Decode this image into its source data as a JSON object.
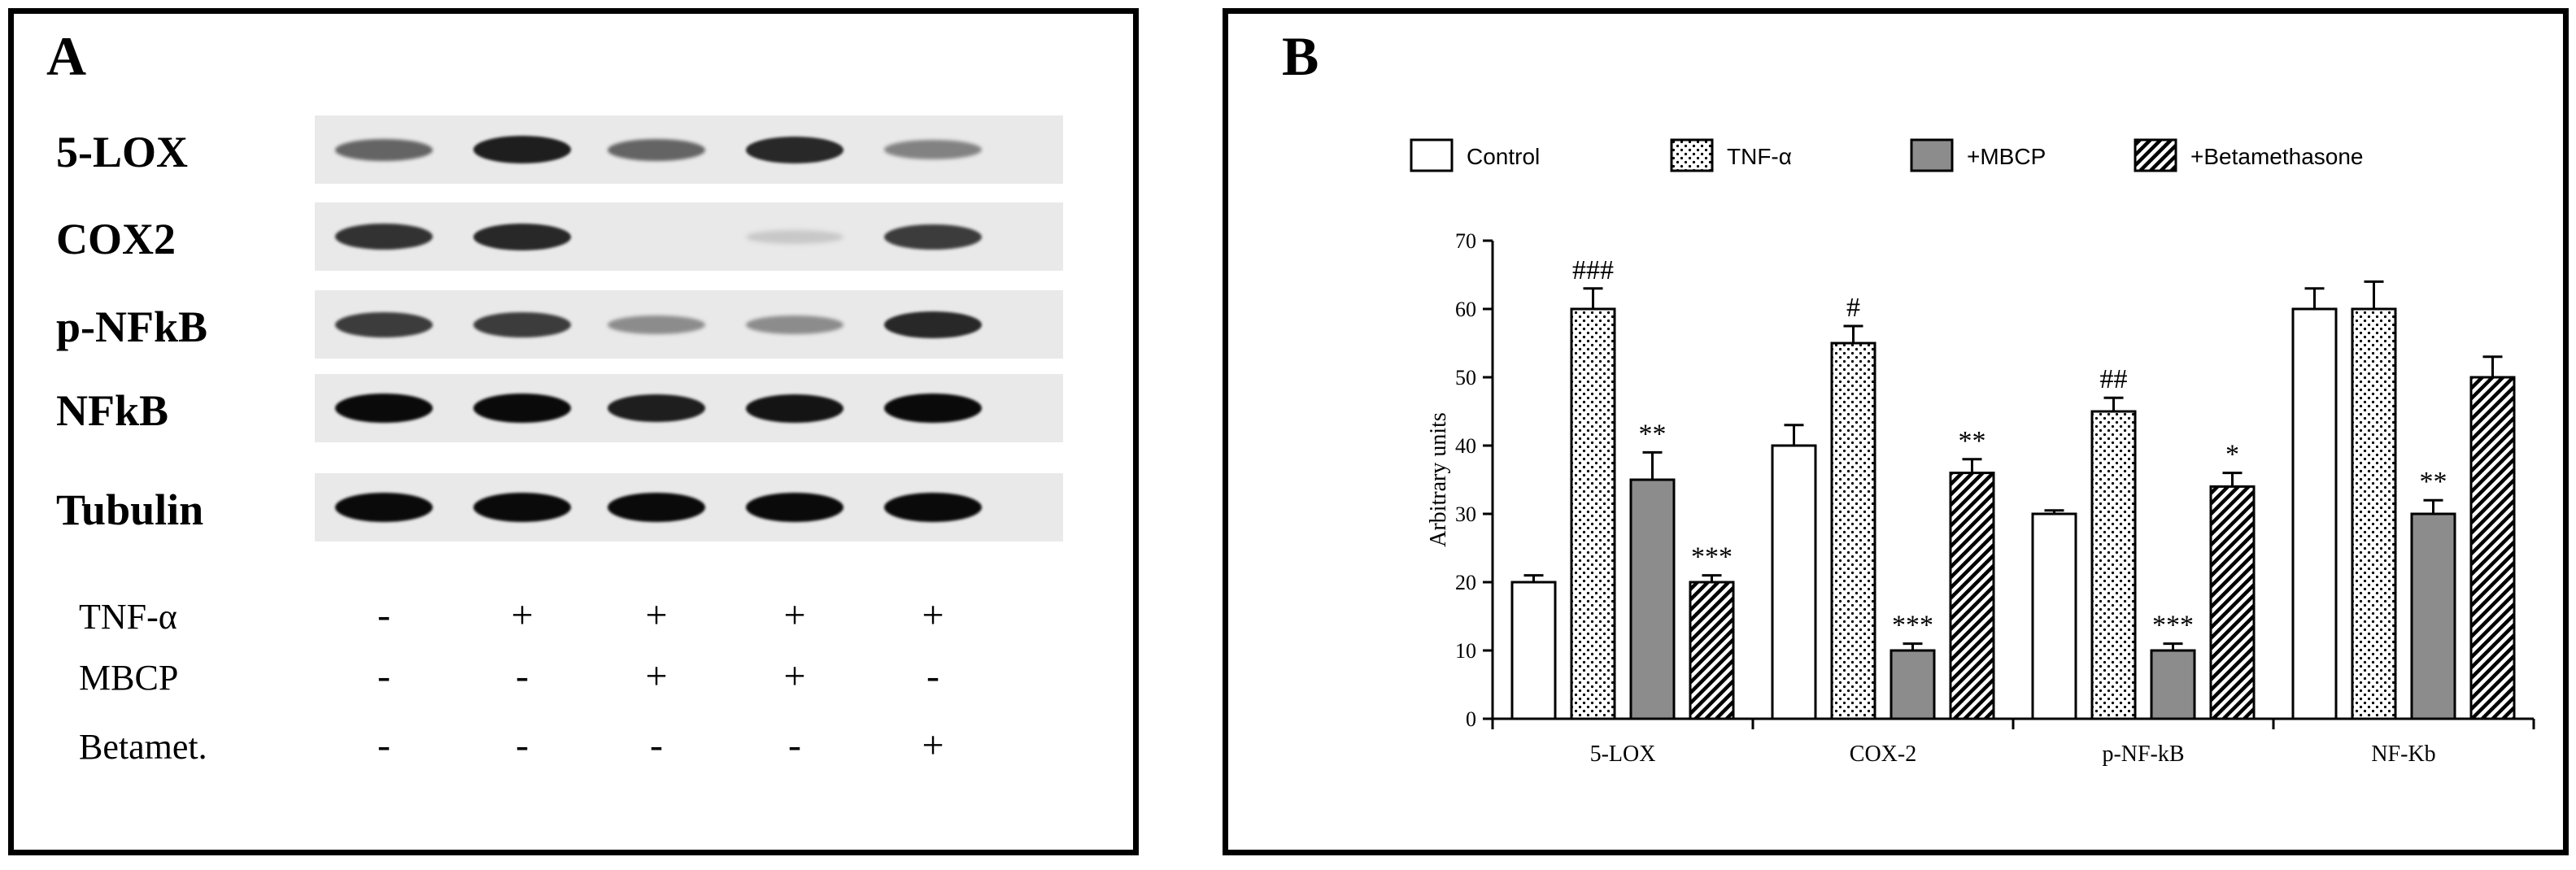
{
  "panel_a": {
    "label": "A",
    "blots": [
      {
        "name": "5-LOX",
        "intensity": [
          0.55,
          0.9,
          0.55,
          0.85,
          0.4
        ]
      },
      {
        "name": "COX2",
        "intensity": [
          0.8,
          0.85,
          0.0,
          0.05,
          0.75
        ]
      },
      {
        "name": "p-NFkB",
        "intensity": [
          0.75,
          0.75,
          0.35,
          0.35,
          0.85
        ]
      },
      {
        "name": "NFkB",
        "intensity": [
          1.0,
          1.0,
          0.9,
          0.95,
          1.0
        ]
      },
      {
        "name": "Tubulin",
        "intensity": [
          1.0,
          1.0,
          1.0,
          1.0,
          1.0
        ]
      }
    ],
    "conditions": [
      {
        "label": "TNF-α",
        "values": [
          "-",
          "+",
          "+",
          "+",
          "+"
        ]
      },
      {
        "label": "MBCP",
        "values": [
          "-",
          "-",
          "+",
          "+",
          "-"
        ]
      },
      {
        "label": "Betamet.",
        "values": [
          "-",
          "-",
          "-",
          "-",
          "+"
        ]
      }
    ]
  },
  "panel_b": {
    "label": "B",
    "chart_data": {
      "type": "bar",
      "categories": [
        "5-LOX",
        "COX-2",
        "p-NF-kB",
        "NF-Kb"
      ],
      "ylabel": "Arbitrary units",
      "xlabel": "",
      "ylim": [
        0,
        70
      ],
      "yticks": [
        0,
        10,
        20,
        30,
        40,
        50,
        60,
        70
      ],
      "legend_position": "top",
      "series": [
        {
          "name": "Control",
          "pattern": "empty",
          "values": [
            20,
            40,
            30,
            60
          ],
          "errors": [
            1,
            3,
            0.5,
            3
          ],
          "annotations": [
            "",
            "",
            "",
            ""
          ]
        },
        {
          "name": "TNF-α",
          "pattern": "dotted",
          "values": [
            60,
            55,
            45,
            60
          ],
          "errors": [
            3,
            2.5,
            2,
            4
          ],
          "annotations": [
            "###",
            "#",
            "##",
            ""
          ]
        },
        {
          "name": "+MBCP",
          "pattern": "gray",
          "values": [
            35,
            10,
            10,
            30
          ],
          "errors": [
            4,
            1,
            1,
            2
          ],
          "annotations": [
            "**",
            "***",
            "***",
            "**"
          ]
        },
        {
          "name": "+Betamethasone",
          "pattern": "hatched",
          "values": [
            20,
            36,
            34,
            50
          ],
          "errors": [
            1,
            2,
            2,
            3
          ],
          "annotations": [
            "***",
            "**",
            "*",
            ""
          ]
        }
      ]
    }
  }
}
